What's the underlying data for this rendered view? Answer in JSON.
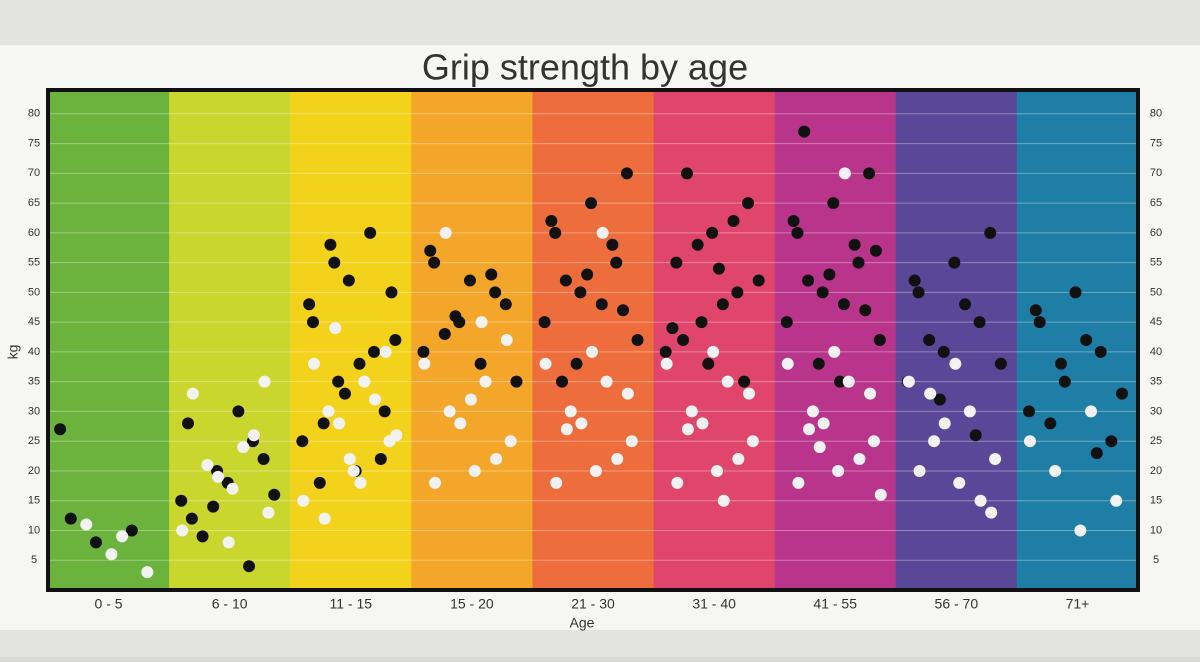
{
  "chart_data": {
    "type": "strip",
    "title": "Grip strength by age",
    "x_label": "Age",
    "y_label": "kg",
    "categories": [
      "0 - 5",
      "6 - 10",
      "11 - 15",
      "15 - 20",
      "21 - 30",
      "31 - 40",
      "41 - 55",
      "56 - 70",
      "71+"
    ],
    "band_colors": [
      "#6cb33d",
      "#c9d62e",
      "#f3d21c",
      "#f4a62a",
      "#ee6d3d",
      "#e0466b",
      "#b8358b",
      "#5b4798",
      "#1f7ea6"
    ],
    "ylim": [
      0,
      84
    ],
    "yticks": [
      5,
      10,
      15,
      20,
      25,
      30,
      35,
      40,
      45,
      50,
      55,
      60,
      65,
      70,
      75,
      80
    ],
    "grid": true,
    "series": [
      {
        "color": "#111111",
        "values": [
          [
            27,
            8,
            10,
            12
          ],
          [
            15,
            20,
            25,
            12,
            18,
            22,
            9,
            30,
            16,
            14,
            4,
            28
          ],
          [
            25,
            35,
            40,
            45,
            52,
            30,
            28,
            38,
            42,
            55,
            60,
            48,
            33,
            22,
            18,
            20,
            50,
            58
          ],
          [
            40,
            45,
            50,
            55,
            52,
            48,
            43,
            38,
            35,
            46,
            53,
            57
          ],
          [
            45,
            50,
            55,
            60,
            65,
            70,
            52,
            48,
            42,
            38,
            58,
            62,
            53,
            47,
            35
          ],
          [
            40,
            45,
            50,
            55,
            60,
            65,
            70,
            48,
            52,
            58,
            62,
            44,
            38,
            35,
            42,
            54
          ],
          [
            45,
            50,
            55,
            60,
            65,
            70,
            52,
            48,
            42,
            38,
            58,
            62,
            53,
            47,
            77,
            35,
            57
          ],
          [
            35,
            40,
            45,
            50,
            55,
            60,
            42,
            48,
            38,
            32,
            26,
            52
          ],
          [
            30,
            35,
            40,
            45,
            50,
            25,
            28,
            42,
            33,
            38,
            23,
            47
          ]
        ]
      },
      {
        "color": "#f2f2f2",
        "values": [
          [
            6,
            3,
            11,
            9
          ],
          [
            17,
            13,
            21,
            24,
            10,
            19,
            26,
            33,
            8,
            35
          ],
          [
            20,
            25,
            30,
            35,
            15,
            28,
            32,
            38,
            22,
            40,
            12,
            18,
            26,
            44
          ],
          [
            20,
            25,
            30,
            35,
            38,
            28,
            22,
            18,
            32,
            42,
            60,
            45
          ],
          [
            20,
            25,
            30,
            35,
            38,
            28,
            22,
            18,
            40,
            33,
            27,
            60
          ],
          [
            20,
            25,
            30,
            35,
            38,
            28,
            22,
            18,
            40,
            33,
            27,
            15
          ],
          [
            20,
            25,
            30,
            35,
            38,
            28,
            22,
            18,
            40,
            33,
            27,
            70,
            16,
            24
          ],
          [
            18,
            22,
            25,
            30,
            35,
            28,
            15,
            20,
            38,
            13,
            33
          ],
          [
            10,
            15,
            20,
            30,
            25
          ]
        ]
      }
    ]
  }
}
